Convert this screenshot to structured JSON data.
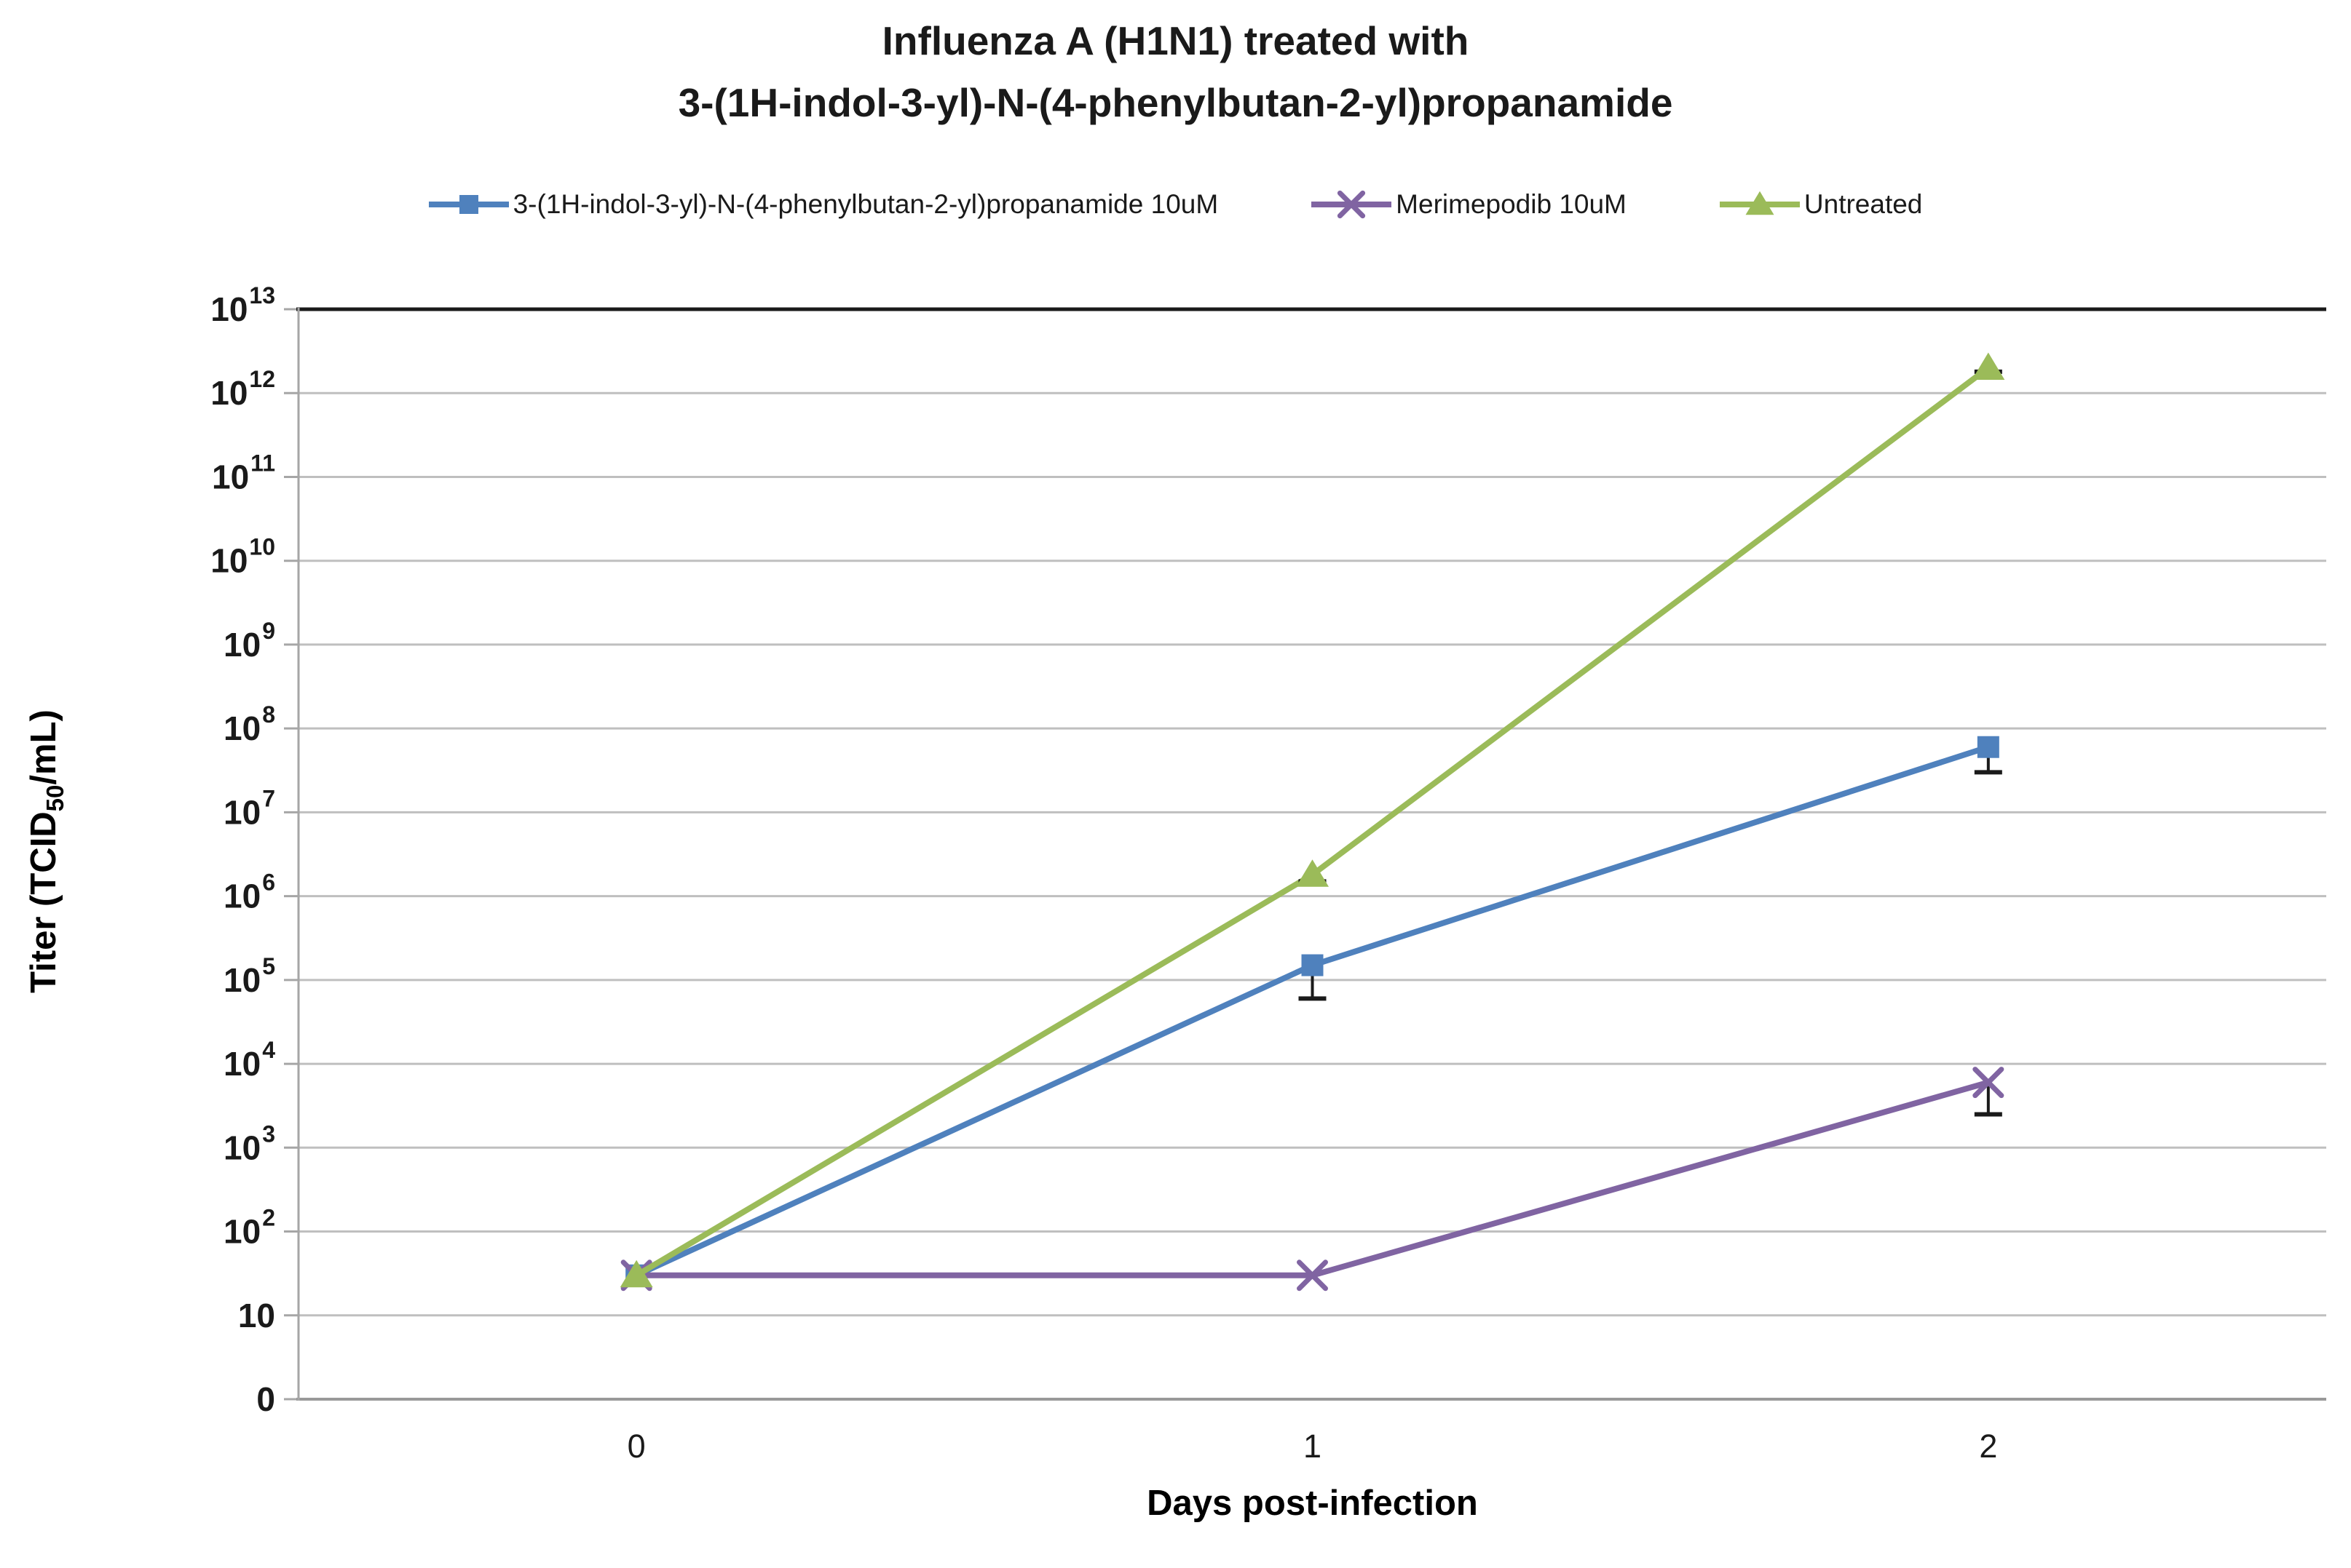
{
  "title": {
    "line1": "Influenza A (H1N1) treated with",
    "line2": "3-(1H-indol-3-yl)-N-(4-phenylbutan-2-yl)propanamide"
  },
  "axes": {
    "x_title": "Days post-infection",
    "y_title_pre": "Titer  (TCID",
    "y_title_sub": "50",
    "y_title_post": "/mL)"
  },
  "chart_data": {
    "type": "line",
    "title": "Influenza A (H1N1) treated with 3-(1H-indol-3-yl)-N-(4-phenylbutan-2-yl)propanamide",
    "xlabel": "Days post-infection",
    "ylabel": "Titer (TCID50/mL)",
    "x_categories": [
      "0",
      "1",
      "2"
    ],
    "y_scale": "log",
    "grid": true,
    "legend_position": "top",
    "y_ticks": [
      {
        "base": "0",
        "exp": ""
      },
      {
        "base": "10",
        "exp": ""
      },
      {
        "base": "10",
        "exp": "2"
      },
      {
        "base": "10",
        "exp": "3"
      },
      {
        "base": "10",
        "exp": "4"
      },
      {
        "base": "10",
        "exp": "5"
      },
      {
        "base": "10",
        "exp": "6"
      },
      {
        "base": "10",
        "exp": "7"
      },
      {
        "base": "10",
        "exp": "8"
      },
      {
        "base": "10",
        "exp": "9"
      },
      {
        "base": "10",
        "exp": "10"
      },
      {
        "base": "10",
        "exp": "11"
      },
      {
        "base": "10",
        "exp": "12"
      },
      {
        "base": "10",
        "exp": "13"
      }
    ],
    "series": [
      {
        "name": "3-(1H-indol-3-yl)-N-(4-phenylbutan-2-yl)propanamide 10uM",
        "color": "#4F81BD",
        "marker": "square",
        "values": [
          30,
          150000,
          60000000
        ],
        "error_low": [
          null,
          60000,
          30000000
        ]
      },
      {
        "name": "Merimepodib 10uM",
        "color": "#8064A2",
        "marker": "x",
        "values": [
          30,
          30,
          6000
        ],
        "error_low": [
          null,
          null,
          2500
        ]
      },
      {
        "name": "Untreated",
        "color": "#9BBB59",
        "marker": "triangle",
        "values": [
          30,
          1800000,
          2000000000000
        ],
        "error_low": [
          null,
          1500000,
          1800000000000
        ]
      }
    ],
    "gridline_color": "#BFBFBF",
    "axis_line_color": "#A6A6A6",
    "top_border_color": "#1a1a1a",
    "error_bar_color": "#1a1a1a"
  }
}
